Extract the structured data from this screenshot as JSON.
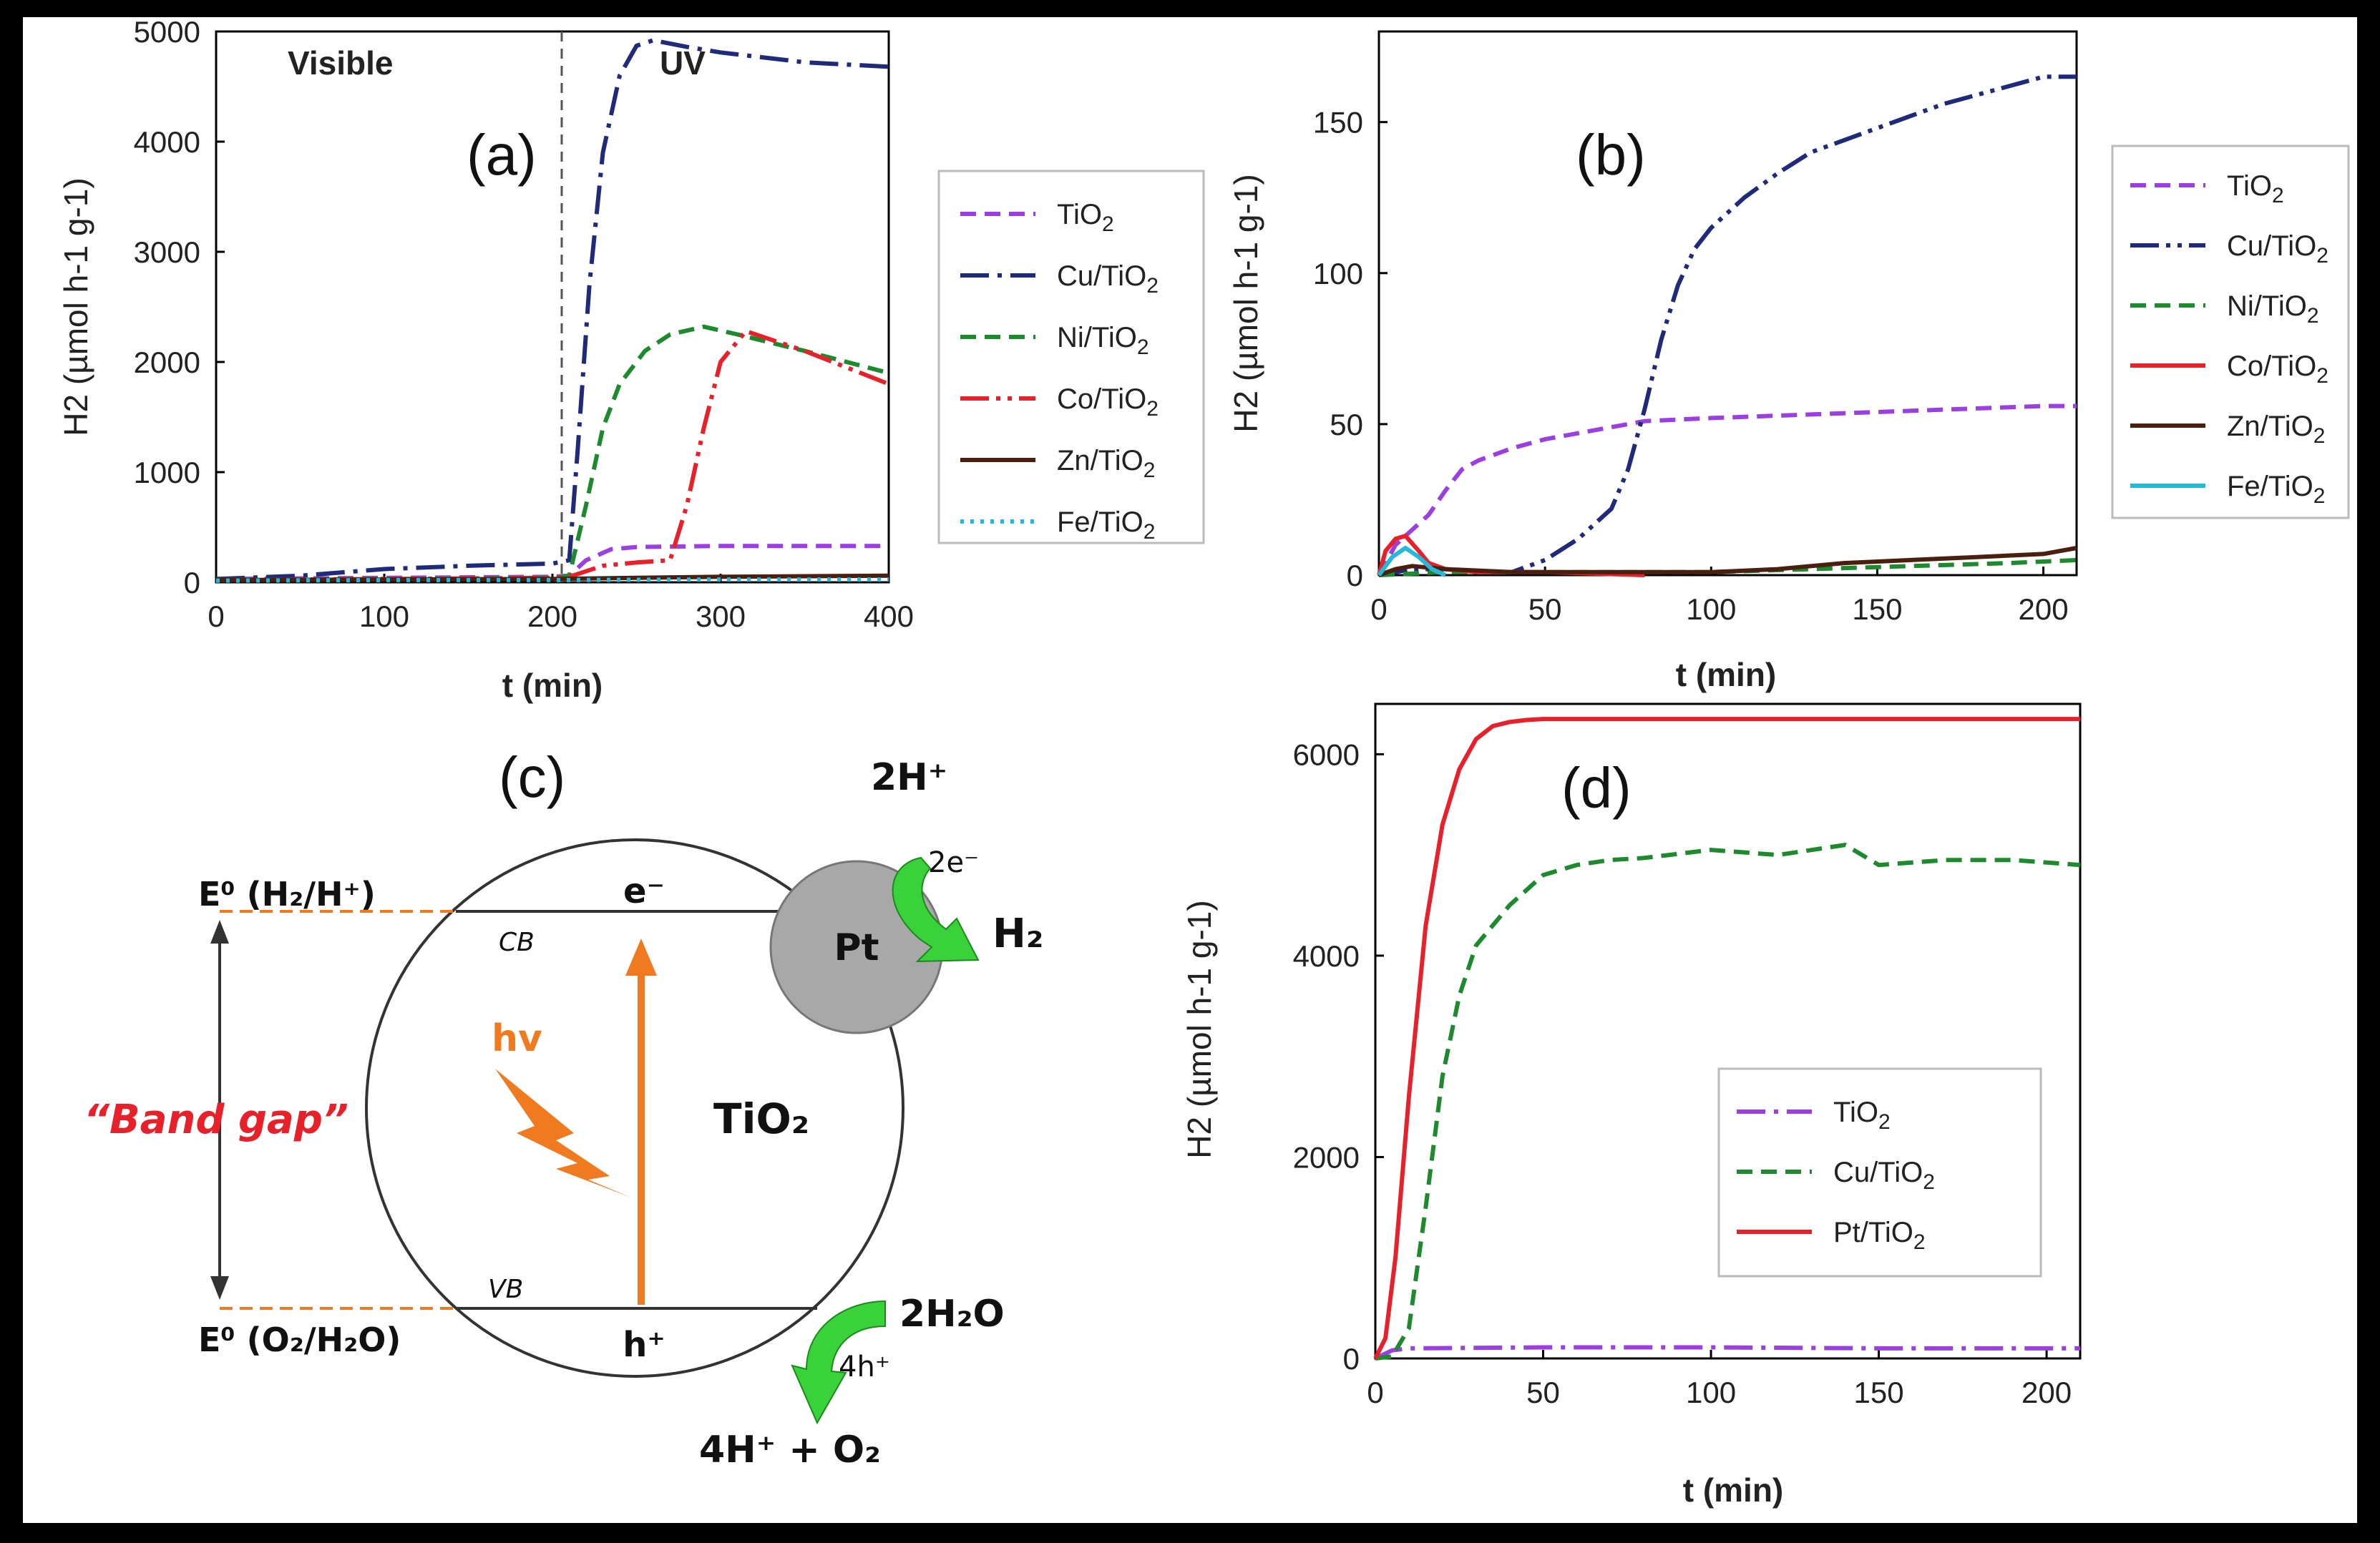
{
  "colors": {
    "TiO2": "#9b3fe0",
    "Cu": "#1f2a7a",
    "Ni": "#1e8a2e",
    "Co": "#e8202a",
    "Zn": "#4a1f10",
    "Fe": "#26b8d8",
    "orange": "#f07a20",
    "green_arrow": "#3ad23a",
    "pt_gray": "#a8a8a8"
  },
  "chart_data": [
    {
      "id": "a",
      "type": "line",
      "panel_label": "(a)",
      "xlabel": "t (min)",
      "ylabel": "H2 (µmol h-1 g-1)",
      "xlim": [
        0,
        400
      ],
      "ylim": [
        0,
        5000
      ],
      "xticks": [
        "0",
        "100",
        "200",
        "300",
        "400"
      ],
      "yticks": [
        "0",
        "1000",
        "2000",
        "3000",
        "4000",
        "5000"
      ],
      "annotations": {
        "visible": "Visible",
        "uv": "UV",
        "divider_x": 210
      },
      "legend": [
        "TiO2",
        "Cu/TiO2",
        "Ni/TiO2",
        "Co/TiO2",
        "Zn/TiO2",
        "Fe/TiO2"
      ],
      "series": [
        {
          "name": "TiO2",
          "style": "dash",
          "color_key": "TiO2",
          "x": [
            0,
            100,
            200,
            210,
            220,
            235,
            250,
            300,
            350,
            400
          ],
          "y": [
            30,
            40,
            50,
            60,
            200,
            300,
            320,
            330,
            330,
            330
          ]
        },
        {
          "name": "Cu/TiO2",
          "style": "dashdot",
          "color_key": "Cu",
          "x": [
            0,
            50,
            100,
            150,
            200,
            210,
            215,
            222,
            230,
            240,
            250,
            260,
            280,
            300,
            350,
            400
          ],
          "y": [
            30,
            60,
            120,
            150,
            170,
            200,
            1200,
            2700,
            3900,
            4600,
            4870,
            4920,
            4860,
            4810,
            4720,
            4680
          ]
        },
        {
          "name": "Ni/TiO2",
          "style": "dash",
          "color_key": "Ni",
          "x": [
            0,
            100,
            200,
            210,
            220,
            230,
            240,
            255,
            270,
            290,
            310,
            350,
            400
          ],
          "y": [
            20,
            30,
            40,
            60,
            700,
            1400,
            1800,
            2100,
            2250,
            2320,
            2250,
            2100,
            1900
          ]
        },
        {
          "name": "Co/TiO2",
          "style": "dashdotdot",
          "color_key": "Co",
          "x": [
            0,
            100,
            200,
            210,
            230,
            250,
            270,
            280,
            290,
            300,
            315,
            350,
            400
          ],
          "y": [
            20,
            30,
            40,
            50,
            150,
            180,
            200,
            700,
            1400,
            2000,
            2280,
            2100,
            1800
          ]
        },
        {
          "name": "Zn/TiO2",
          "style": "solid",
          "color_key": "Zn",
          "x": [
            0,
            100,
            200,
            250,
            300,
            400
          ],
          "y": [
            20,
            25,
            30,
            40,
            50,
            60
          ]
        },
        {
          "name": "Fe/TiO2",
          "style": "dot",
          "color_key": "Fe",
          "x": [
            0,
            100,
            200,
            300,
            400
          ],
          "y": [
            15,
            20,
            20,
            25,
            25
          ]
        }
      ]
    },
    {
      "id": "b",
      "type": "line",
      "panel_label": "(b)",
      "xlabel": "t (min)",
      "ylabel": "H2 (µmol h-1 g-1)",
      "xlim": [
        0,
        210
      ],
      "ylim": [
        0,
        180
      ],
      "xticks": [
        "0",
        "50",
        "100",
        "150",
        "200"
      ],
      "yticks": [
        "0",
        "50",
        "100",
        "150"
      ],
      "legend": [
        "TiO2",
        "Cu/TiO2",
        "Ni/TiO2",
        "Co/TiO2",
        "Zn/TiO2",
        "Fe/TiO2"
      ],
      "series": [
        {
          "name": "TiO2",
          "style": "dash",
          "color_key": "TiO2",
          "x": [
            0,
            5,
            10,
            15,
            20,
            25,
            30,
            40,
            50,
            60,
            70,
            80,
            100,
            125,
            150,
            175,
            200,
            210
          ],
          "y": [
            0,
            10,
            15,
            20,
            28,
            35,
            38,
            42,
            45,
            47,
            49,
            51,
            52,
            53,
            54,
            55,
            56,
            56
          ]
        },
        {
          "name": "Cu/TiO2",
          "style": "dashdotdot",
          "color_key": "Cu",
          "x": [
            0,
            10,
            20,
            30,
            40,
            50,
            60,
            70,
            75,
            80,
            85,
            90,
            95,
            100,
            110,
            120,
            130,
            150,
            170,
            190,
            200,
            210
          ],
          "y": [
            0,
            2,
            2,
            1,
            1,
            5,
            12,
            22,
            35,
            55,
            78,
            96,
            108,
            115,
            125,
            133,
            140,
            148,
            156,
            162,
            165,
            165
          ]
        },
        {
          "name": "Ni/TiO2",
          "style": "dash",
          "color_key": "Ni",
          "x": [
            0,
            20,
            50,
            80,
            100,
            130,
            160,
            190,
            210
          ],
          "y": [
            0,
            1,
            1,
            1,
            1,
            2,
            3,
            4,
            5
          ]
        },
        {
          "name": "Co/TiO2",
          "style": "solid",
          "color_key": "Co",
          "x": [
            0,
            2,
            5,
            8,
            12,
            15,
            20,
            30,
            50,
            80
          ],
          "y": [
            0,
            8,
            12,
            13,
            8,
            4,
            2,
            1,
            1,
            0
          ]
        },
        {
          "name": "Zn/TiO2",
          "style": "solid",
          "color_key": "Zn",
          "x": [
            0,
            5,
            10,
            20,
            40,
            60,
            100,
            120,
            140,
            160,
            180,
            200,
            210
          ],
          "y": [
            0,
            2,
            3,
            2,
            1,
            1,
            1,
            2,
            4,
            5,
            6,
            7,
            9
          ]
        },
        {
          "name": "Fe/TiO2",
          "style": "solid",
          "color_key": "Fe",
          "x": [
            0,
            4,
            8,
            12,
            16,
            20
          ],
          "y": [
            0,
            6,
            9,
            6,
            2,
            0
          ]
        }
      ]
    },
    {
      "id": "d",
      "type": "line",
      "panel_label": "(d)",
      "xlabel": "t (min)",
      "ylabel": "H2 (µmol h-1 g-1)",
      "xlim": [
        0,
        210
      ],
      "ylim": [
        0,
        6500
      ],
      "xticks": [
        "0",
        "50",
        "100",
        "150",
        "200"
      ],
      "yticks": [
        "0",
        "2000",
        "4000",
        "6000"
      ],
      "legend": [
        "TiO2",
        "Cu/TiO2",
        "Pt/TiO2"
      ],
      "series": [
        {
          "name": "TiO2",
          "style": "dashdot",
          "color_key": "TiO2",
          "x": [
            0,
            5,
            10,
            50,
            100,
            150,
            200,
            210
          ],
          "y": [
            0,
            80,
            100,
            110,
            110,
            100,
            100,
            100
          ]
        },
        {
          "name": "Cu/TiO2",
          "style": "dash",
          "color_key": "Ni",
          "x": [
            0,
            5,
            10,
            15,
            20,
            25,
            30,
            40,
            50,
            60,
            70,
            80,
            100,
            120,
            140,
            150,
            170,
            190,
            210
          ],
          "y": [
            0,
            20,
            300,
            1500,
            2800,
            3600,
            4100,
            4500,
            4800,
            4900,
            4950,
            4970,
            5050,
            5000,
            5100,
            4900,
            4950,
            4950,
            4900
          ]
        },
        {
          "name": "Pt/TiO2",
          "style": "solid",
          "color_key": "Co",
          "x": [
            0,
            3,
            6,
            10,
            15,
            20,
            25,
            30,
            35,
            40,
            45,
            50,
            60,
            100,
            150,
            210
          ],
          "y": [
            0,
            200,
            1000,
            2600,
            4300,
            5300,
            5850,
            6150,
            6280,
            6320,
            6340,
            6350,
            6350,
            6350,
            6350,
            6350
          ]
        }
      ]
    }
  ],
  "diagram": {
    "panel_label": "(c)",
    "e_h2": "E⁰ (H₂/H⁺)",
    "e_o2": "E⁰ (O₂/H₂O)",
    "band_gap": "“Band gap”",
    "cb": "CB",
    "vb": "VB",
    "electron": "e⁻",
    "hole": "h⁺",
    "hv": "hv",
    "tio2": "TiO₂",
    "pt": "Pt",
    "two_h_plus": "2H⁺",
    "two_e": "2e⁻",
    "h2": "H₂",
    "two_h2o": "2H₂O",
    "four_h": "4h⁺",
    "products": "4H⁺ + O₂"
  }
}
